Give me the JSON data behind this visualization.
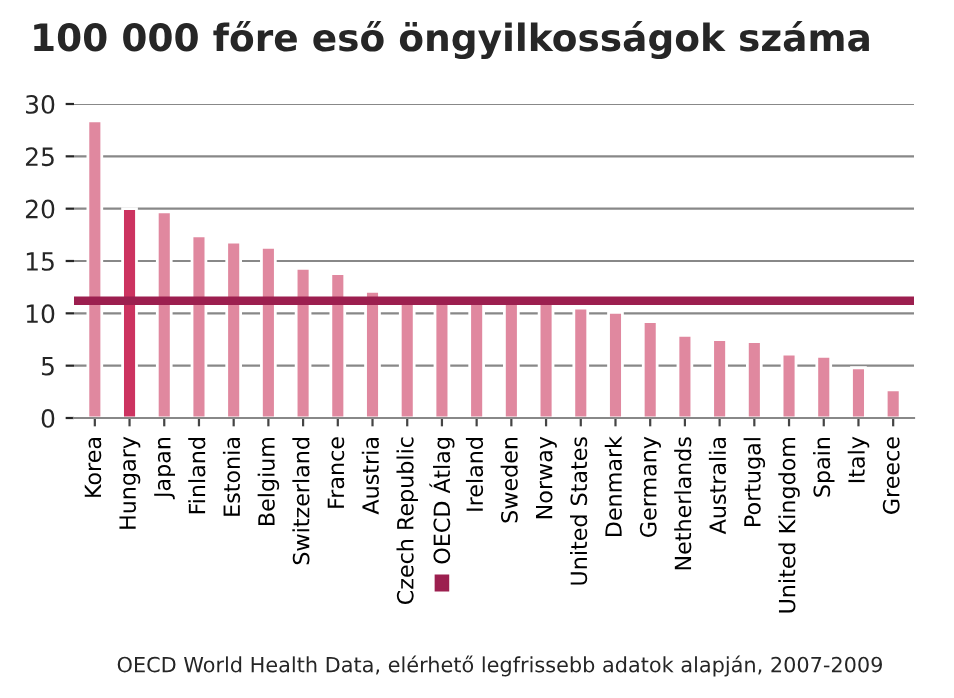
{
  "chart_data": {
    "type": "bar",
    "title": "100 000 főre eső öngyilkosságok száma",
    "categories": [
      "Korea",
      "Hungary",
      "Japan",
      "Finland",
      "Estonia",
      "Belgium",
      "Switzerland",
      "France",
      "Austria",
      "Czech Republic",
      "OECD Átlag",
      "Ireland",
      "Sweden",
      "Norway",
      "United States",
      "Denmark",
      "Germany",
      "Netherlands",
      "Australia",
      "Portugal",
      "United Kingdom",
      "Spain",
      "Italy",
      "Greece"
    ],
    "values": [
      28.4,
      20.0,
      19.7,
      17.4,
      16.8,
      16.3,
      14.3,
      13.8,
      12.1,
      11.3,
      11.1,
      11.3,
      11.3,
      11.0,
      10.5,
      10.1,
      9.2,
      7.9,
      7.5,
      7.3,
      6.1,
      5.9,
      4.8,
      2.7
    ],
    "colors": [
      "#e0889f",
      "#cc3360",
      "#e0889f",
      "#e0889f",
      "#e0889f",
      "#e0889f",
      "#e0889f",
      "#e0889f",
      "#e0889f",
      "#e0889f",
      "#e0889f",
      "#e0889f",
      "#e0889f",
      "#e0889f",
      "#e0889f",
      "#e0889f",
      "#e0889f",
      "#e0889f",
      "#e0889f",
      "#e0889f",
      "#e0889f",
      "#e0889f",
      "#e0889f",
      "#e0889f"
    ],
    "ylim": [
      0,
      30
    ],
    "yticks": [
      0,
      5,
      10,
      15,
      20,
      25,
      30
    ],
    "grid": "y",
    "ref_lines": [
      {
        "axis": "y",
        "value": 11.2,
        "color": "#9c1f4f"
      }
    ],
    "annotations": [
      "OECD World Health Data, elérhető legfrissebb adatok alapján, 2007-2009"
    ]
  }
}
